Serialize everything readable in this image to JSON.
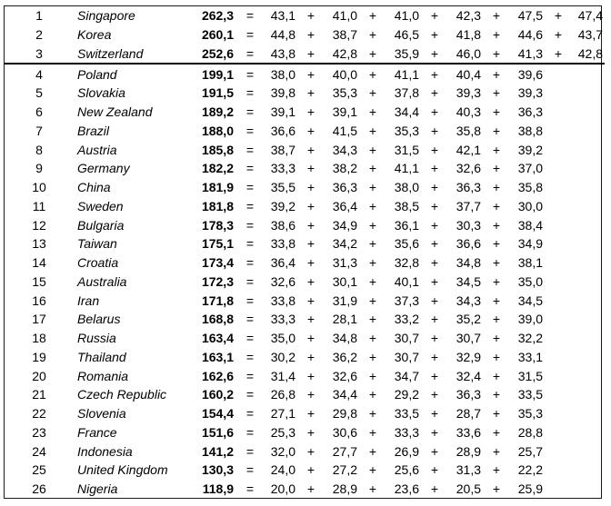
{
  "rows": [
    {
      "rank": "1",
      "country": "Singapore",
      "total": "262,3",
      "scores": [
        "43,1",
        "41,0",
        "41,0",
        "42,3",
        "47,5",
        "47,4"
      ]
    },
    {
      "rank": "2",
      "country": "Korea",
      "total": "260,1",
      "scores": [
        "44,8",
        "38,7",
        "46,5",
        "41,8",
        "44,6",
        "43,7"
      ]
    },
    {
      "rank": "3",
      "country": "Switzerland",
      "total": "252,6",
      "scores": [
        "43,8",
        "42,8",
        "35,9",
        "46,0",
        "41,3",
        "42,8"
      ]
    },
    {
      "rank": "4",
      "country": "Poland",
      "total": "199,1",
      "scores": [
        "38,0",
        "40,0",
        "41,1",
        "40,4",
        "39,6"
      ]
    },
    {
      "rank": "5",
      "country": "Slovakia",
      "total": "191,5",
      "scores": [
        "39,8",
        "35,3",
        "37,8",
        "39,3",
        "39,3"
      ]
    },
    {
      "rank": "6",
      "country": "New Zealand",
      "total": "189,2",
      "scores": [
        "39,1",
        "39,1",
        "34,4",
        "40,3",
        "36,3"
      ]
    },
    {
      "rank": "7",
      "country": "Brazil",
      "total": "188,0",
      "scores": [
        "36,6",
        "41,5",
        "35,3",
        "35,8",
        "38,8"
      ]
    },
    {
      "rank": "8",
      "country": "Austria",
      "total": "185,8",
      "scores": [
        "38,7",
        "34,3",
        "31,5",
        "42,1",
        "39,2"
      ]
    },
    {
      "rank": "9",
      "country": "Germany",
      "total": "182,2",
      "scores": [
        "33,3",
        "38,2",
        "41,1",
        "32,6",
        "37,0"
      ]
    },
    {
      "rank": "10",
      "country": "China",
      "total": "181,9",
      "scores": [
        "35,5",
        "36,3",
        "38,0",
        "36,3",
        "35,8"
      ]
    },
    {
      "rank": "11",
      "country": "Sweden",
      "total": "181,8",
      "scores": [
        "39,2",
        "36,4",
        "38,5",
        "37,7",
        "30,0"
      ]
    },
    {
      "rank": "12",
      "country": "Bulgaria",
      "total": "178,3",
      "scores": [
        "38,6",
        "34,9",
        "36,1",
        "30,3",
        "38,4"
      ]
    },
    {
      "rank": "13",
      "country": "Taiwan",
      "total": "175,1",
      "scores": [
        "33,8",
        "34,2",
        "35,6",
        "36,6",
        "34,9"
      ]
    },
    {
      "rank": "14",
      "country": "Croatia",
      "total": "173,4",
      "scores": [
        "36,4",
        "31,3",
        "32,8",
        "34,8",
        "38,1"
      ]
    },
    {
      "rank": "15",
      "country": "Australia",
      "total": "172,3",
      "scores": [
        "32,6",
        "30,1",
        "40,1",
        "34,5",
        "35,0"
      ]
    },
    {
      "rank": "16",
      "country": "Iran",
      "total": "171,8",
      "scores": [
        "33,8",
        "31,9",
        "37,3",
        "34,3",
        "34,5"
      ]
    },
    {
      "rank": "17",
      "country": "Belarus",
      "total": "168,8",
      "scores": [
        "33,3",
        "28,1",
        "33,2",
        "35,2",
        "39,0"
      ]
    },
    {
      "rank": "18",
      "country": "Russia",
      "total": "163,4",
      "scores": [
        "35,0",
        "34,8",
        "30,7",
        "30,7",
        "32,2"
      ]
    },
    {
      "rank": "19",
      "country": "Thailand",
      "total": "163,1",
      "scores": [
        "30,2",
        "36,2",
        "30,7",
        "32,9",
        "33,1"
      ]
    },
    {
      "rank": "20",
      "country": "Romania",
      "total": "162,6",
      "scores": [
        "31,4",
        "32,6",
        "34,7",
        "32,4",
        "31,5"
      ]
    },
    {
      "rank": "21",
      "country": "Czech Republic",
      "total": "160,2",
      "scores": [
        "26,8",
        "34,4",
        "29,2",
        "36,3",
        "33,5"
      ]
    },
    {
      "rank": "22",
      "country": "Slovenia",
      "total": "154,4",
      "scores": [
        "27,1",
        "29,8",
        "33,5",
        "28,7",
        "35,3"
      ]
    },
    {
      "rank": "23",
      "country": "France",
      "total": "151,6",
      "scores": [
        "25,3",
        "30,6",
        "33,3",
        "33,6",
        "28,8"
      ]
    },
    {
      "rank": "24",
      "country": "Indonesia",
      "total": "141,2",
      "scores": [
        "32,0",
        "27,7",
        "26,9",
        "28,9",
        "25,7"
      ]
    },
    {
      "rank": "25",
      "country": "United Kingdom",
      "total": "130,3",
      "scores": [
        "24,0",
        "27,2",
        "25,6",
        "31,3",
        "22,2"
      ]
    },
    {
      "rank": "26",
      "country": "Nigeria",
      "total": "118,9",
      "scores": [
        "20,0",
        "28,9",
        "23,6",
        "20,5",
        "25,9"
      ]
    }
  ],
  "symbols": {
    "equals": "=",
    "plus": "+"
  }
}
